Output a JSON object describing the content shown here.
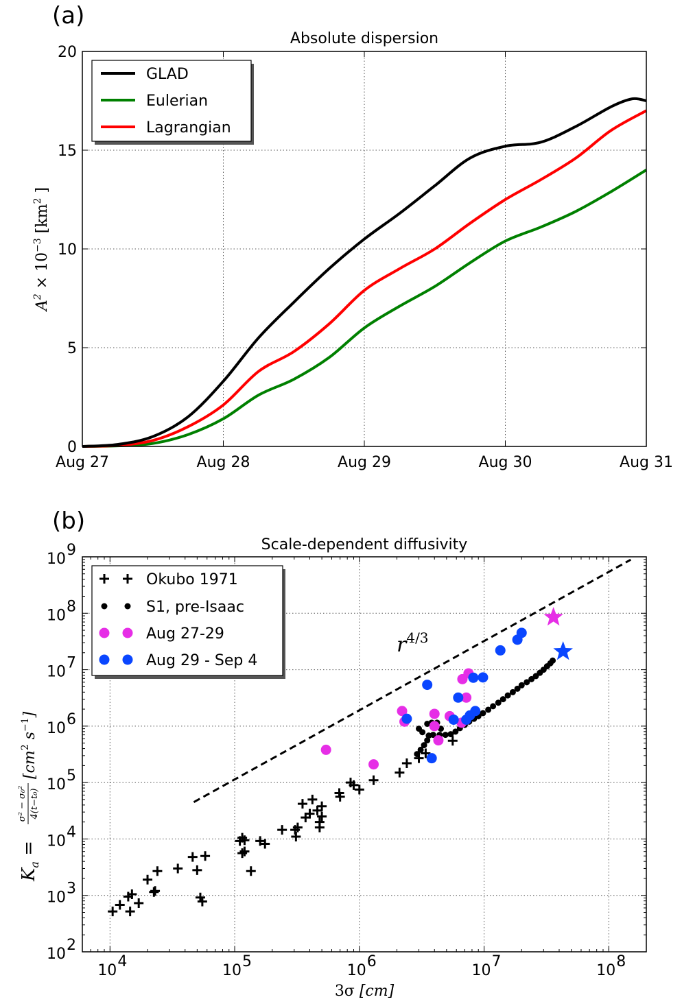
{
  "chart_data": [
    {
      "panel_label": "(a)",
      "type": "line",
      "title": "Absolute dispersion",
      "xlabel": "",
      "ylabel": "A² × 10⁻³ [km²]",
      "ylabel_parts": {
        "symbol": "A",
        "symbol_exp": "2",
        "times": " × 10",
        "times_exp": "−3",
        "unit": " [km",
        "unit_exp": "2",
        "unit_close": " ]"
      },
      "xticks": [
        "Aug 27",
        "Aug 28",
        "Aug 29",
        "Aug 30",
        "Aug 31"
      ],
      "xlim": [
        0,
        4
      ],
      "ylim": [
        0,
        20
      ],
      "yticks": [
        0,
        5,
        10,
        15,
        20
      ],
      "grid": true,
      "legend_position": "upper-left",
      "series": [
        {
          "name": "GLAD",
          "color": "#000000",
          "x": [
            0,
            0.25,
            0.5,
            0.75,
            1.0,
            1.25,
            1.5,
            1.75,
            2.0,
            2.25,
            2.5,
            2.75,
            3.0,
            3.25,
            3.5,
            3.75,
            3.9,
            4.0
          ],
          "y": [
            0,
            0.1,
            0.5,
            1.5,
            3.3,
            5.5,
            7.3,
            9.0,
            10.5,
            11.8,
            13.2,
            14.6,
            15.2,
            15.4,
            16.2,
            17.2,
            17.6,
            17.5
          ]
        },
        {
          "name": "Eulerian",
          "color": "#008000",
          "x": [
            0,
            0.25,
            0.5,
            0.75,
            1.0,
            1.25,
            1.5,
            1.75,
            2.0,
            2.25,
            2.5,
            2.75,
            3.0,
            3.25,
            3.5,
            3.75,
            4.0
          ],
          "y": [
            0,
            0.03,
            0.15,
            0.6,
            1.4,
            2.6,
            3.4,
            4.5,
            6.0,
            7.1,
            8.1,
            9.3,
            10.4,
            11.1,
            11.9,
            12.9,
            14.0
          ]
        },
        {
          "name": "Lagrangian",
          "color": "#ff0000",
          "x": [
            0,
            0.25,
            0.5,
            0.75,
            1.0,
            1.25,
            1.5,
            1.75,
            2.0,
            2.25,
            2.5,
            2.75,
            3.0,
            3.25,
            3.5,
            3.75,
            4.0
          ],
          "y": [
            0,
            0.05,
            0.3,
            1.0,
            2.1,
            3.8,
            4.8,
            6.2,
            7.9,
            9.0,
            10.0,
            11.3,
            12.5,
            13.5,
            14.6,
            16.0,
            17.0
          ]
        }
      ]
    },
    {
      "panel_label": "(b)",
      "type": "scatter",
      "title": "Scale-dependent diffusivity",
      "xscale": "log",
      "yscale": "log",
      "xlim": [
        6000.0,
        200000000.0
      ],
      "ylim": [
        100.0,
        1000000000.0
      ],
      "xticks": [
        4,
        5,
        6,
        7,
        8
      ],
      "yticks": [
        2,
        3,
        4,
        5,
        6,
        7,
        8,
        9
      ],
      "grid": true,
      "legend_position": "upper-left",
      "xlabel_parts": {
        "a": "3σ ",
        "b": "[cm]"
      },
      "ylabel_parts": {
        "k": "K",
        "k_sub": "a",
        "eq": " =",
        "num": "σ² − σ₀²",
        "den": "4(t−t₀)",
        "unit": " [cm",
        "unit_exp": "2",
        "unit_mid": " s",
        "unit_exp2": "−1",
        "unit_close": "]"
      },
      "annotation": {
        "base": "r",
        "exp": "4/3"
      },
      "reference_line": {
        "style": "dashed",
        "color": "#000000",
        "x": [
          47000.0,
          150000000.0
        ],
        "y": [
          45000.0,
          890000000.0
        ]
      },
      "series": [
        {
          "name": "Okubo 1971",
          "marker": "plus",
          "color": "#000000",
          "points": [
            [
              10500.0,
              520
            ],
            [
              12000.0,
              680
            ],
            [
              14000.0,
              950
            ],
            [
              14500.0,
              520
            ],
            [
              15000.0,
              1050
            ],
            [
              17000.0,
              730
            ],
            [
              20000.0,
              1900
            ],
            [
              22500.0,
              1150
            ],
            [
              23000.0,
              1200
            ],
            [
              24000.0,
              2700
            ],
            [
              35000.0,
              3000
            ],
            [
              46000.0,
              4800
            ],
            [
              50000.0,
              2800
            ],
            [
              53000.0,
              920
            ],
            [
              55000.0,
              780
            ],
            [
              58000.0,
              5000
            ],
            [
              110000.0,
              9200
            ],
            [
              115000.0,
              10500
            ],
            [
              115000.0,
              5600
            ],
            [
              120000.0,
              6000
            ],
            [
              120000.0,
              9500
            ],
            [
              135000.0,
              2700
            ],
            [
              160000.0,
              9200
            ],
            [
              175000.0,
              8200
            ],
            [
              240000.0,
              14500
            ],
            [
              305000.0,
              14500
            ],
            [
              310000.0,
              11000
            ],
            [
              320000.0,
              16000
            ],
            [
              350000.0,
              42000
            ],
            [
              370000.0,
              24000
            ],
            [
              400000.0,
              28000
            ],
            [
              420000.0,
              50000
            ],
            [
              460000.0,
              32000
            ],
            [
              480000.0,
              20000
            ],
            [
              480000.0,
              16000
            ],
            [
              500000.0,
              25000
            ],
            [
              500000.0,
              38000
            ],
            [
              690000.0,
              65000
            ],
            [
              700000.0,
              56000
            ],
            [
              850000.0,
              100000
            ],
            [
              900000.0,
              90000
            ],
            [
              1000000.0,
              75000
            ],
            [
              1300000.0,
              110000
            ],
            [
              2100000.0,
              150000
            ],
            [
              2400000.0,
              220000
            ],
            [
              3000000.0,
              270000
            ],
            [
              3400000.0,
              330000
            ],
            [
              5600000.0,
              550000
            ]
          ]
        },
        {
          "name": "S1, pre-Isaac",
          "marker": "dot",
          "color": "#000000",
          "points": [
            [
              2900000.0,
              320000
            ],
            [
              3100000.0,
              380000
            ],
            [
              3300000.0,
              460000
            ],
            [
              3500000.0,
              560000
            ],
            [
              3600000.0,
              680000
            ],
            [
              3500000.0,
              1100000
            ],
            [
              3800000.0,
              1150000
            ],
            [
              4200000.0,
              1150000
            ],
            [
              4500000.0,
              900000
            ],
            [
              3000000.0,
              900000
            ],
            [
              3200000.0,
              780000
            ],
            [
              3900000.0,
              700000
            ],
            [
              4400000.0,
              700000
            ],
            [
              4900000.0,
              700000
            ],
            [
              5400000.0,
              720000
            ],
            [
              5900000.0,
              800000
            ],
            [
              6400000.0,
              920000
            ],
            [
              7000000.0,
              1050000
            ],
            [
              7600000.0,
              1200000
            ],
            [
              8300000.0,
              1350000
            ],
            [
              9000000.0,
              1500000
            ],
            [
              9800000.0,
              1700000
            ],
            [
              10800000.0,
              1950000
            ],
            [
              11800000.0,
              2250000
            ],
            [
              13000000.0,
              2600000
            ],
            [
              14200000.0,
              3000000
            ],
            [
              15500000.0,
              3500000
            ],
            [
              17000000.0,
              4000000
            ],
            [
              18500000.0,
              4600000
            ],
            [
              20000000.0,
              5300000
            ],
            [
              22000000.0,
              6000000
            ],
            [
              24000000.0,
              6800000
            ],
            [
              26000000.0,
              7700000
            ],
            [
              28000000.0,
              8800000
            ],
            [
              30000000.0,
              10000000
            ],
            [
              32000000.0,
              11500000
            ],
            [
              34000000.0,
              13000000
            ],
            [
              35500000.0,
              14500000
            ]
          ]
        },
        {
          "name": "Aug 27-29",
          "marker": "dot",
          "color": "#e62ee6",
          "points": [
            [
              540000.0,
              380000
            ],
            [
              1300000.0,
              210000
            ],
            [
              2200000.0,
              1850000
            ],
            [
              2300000.0,
              1200000
            ],
            [
              4000000.0,
              1000000
            ],
            [
              4000000.0,
              1650000
            ],
            [
              4300000.0,
              560000
            ],
            [
              5300000.0,
              1500000
            ],
            [
              6600000.0,
              1150000
            ],
            [
              6700000.0,
              6800000
            ],
            [
              7200000.0,
              3200000
            ],
            [
              7500000.0,
              8600000
            ]
          ]
        },
        {
          "name": "Aug 29 - Sep 4",
          "marker": "dot",
          "color": "#0a46ff",
          "points": [
            [
              2400000.0,
              1350000
            ],
            [
              3500000.0,
              5400000
            ],
            [
              3800000.0,
              270000
            ],
            [
              5700000.0,
              1300000
            ],
            [
              6200000.0,
              3200000
            ],
            [
              7200000.0,
              1300000
            ],
            [
              7700000.0,
              1550000
            ],
            [
              8200000.0,
              7200000
            ],
            [
              8500000.0,
              1850000
            ],
            [
              9800000.0,
              7300000
            ],
            [
              13500000.0,
              22000000
            ],
            [
              18500000.0,
              34000000
            ],
            [
              20000000.0,
              45000000
            ]
          ]
        }
      ],
      "stars": [
        {
          "color": "#e62ee6",
          "x": 36000000.0,
          "y": 85000000.0
        },
        {
          "color": "#0a46ff",
          "x": 43000000.0,
          "y": 21000000.0
        }
      ]
    }
  ]
}
